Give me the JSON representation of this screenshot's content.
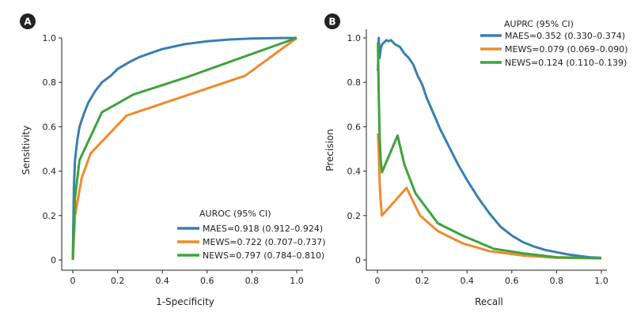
{
  "colors": {
    "maes": "#3a7fb0",
    "mews": "#ef8a2b",
    "news": "#3ea33c",
    "axis": "#222222"
  },
  "chart_data": [
    {
      "panel_label": "A",
      "type": "line",
      "xlabel": "1-Specificity",
      "ylabel": "Sensitivity",
      "xlim": [
        0,
        1
      ],
      "ylim": [
        0,
        1
      ],
      "xticks": [
        "0",
        "0.2",
        "0.4",
        "0.6",
        "0.8",
        "1.0"
      ],
      "yticks": [
        "0",
        "0.2",
        "0.4",
        "0.6",
        "0.8",
        "1.0"
      ],
      "grid": false,
      "legend_title": "AUROC (95% CI)",
      "legend_position": "bottom-right",
      "series": [
        {
          "name": "MAES=0.918 (0.912–0.924)",
          "color": "maes",
          "x": [
            0,
            0.005,
            0.01,
            0.02,
            0.03,
            0.05,
            0.07,
            0.1,
            0.13,
            0.17,
            0.2,
            0.25,
            0.3,
            0.4,
            0.5,
            0.6,
            0.7,
            0.8,
            0.9,
            1.0
          ],
          "y": [
            0,
            0.33,
            0.45,
            0.54,
            0.6,
            0.66,
            0.71,
            0.76,
            0.8,
            0.83,
            0.86,
            0.89,
            0.915,
            0.95,
            0.972,
            0.985,
            0.993,
            0.997,
            0.999,
            1.0
          ]
        },
        {
          "name": "MEWS=0.722 (0.707–0.737)",
          "color": "mews",
          "x": [
            0,
            0.01,
            0.04,
            0.08,
            0.24,
            0.77,
            1.0
          ],
          "y": [
            0,
            0.2,
            0.37,
            0.48,
            0.65,
            0.83,
            1.0
          ]
        },
        {
          "name": "NEWS=0.797 (0.784–0.810)",
          "color": "news",
          "x": [
            0,
            0.01,
            0.03,
            0.13,
            0.27,
            0.5,
            1.0
          ],
          "y": [
            0,
            0.28,
            0.45,
            0.665,
            0.745,
            0.82,
            1.0
          ]
        }
      ]
    },
    {
      "panel_label": "B",
      "type": "line",
      "xlabel": "Recall",
      "ylabel": "Precision",
      "xlim": [
        0,
        1
      ],
      "ylim": [
        0,
        1
      ],
      "xticks": [
        "0",
        "0.2",
        "0.4",
        "0.6",
        "0.8",
        "1.0"
      ],
      "yticks": [
        "0",
        "0.2",
        "0.4",
        "0.6",
        "0.8",
        "1.0"
      ],
      "grid": false,
      "legend_title": "AUPRC (95% CI)",
      "legend_position": "top-right",
      "series": [
        {
          "name": "MAES=0.352 (0.330–0.374)",
          "color": "maes",
          "x": [
            0.002,
            0.006,
            0.01,
            0.015,
            0.02,
            0.03,
            0.04,
            0.05,
            0.06,
            0.08,
            0.1,
            0.12,
            0.14,
            0.16,
            0.18,
            0.2,
            0.22,
            0.25,
            0.28,
            0.3,
            0.33,
            0.36,
            0.4,
            0.45,
            0.5,
            0.55,
            0.6,
            0.65,
            0.7,
            0.75,
            0.8,
            0.85,
            0.9,
            0.95,
            1.0
          ],
          "y": [
            0.85,
            1.0,
            0.91,
            0.95,
            0.97,
            0.98,
            0.99,
            0.985,
            0.99,
            0.97,
            0.96,
            0.93,
            0.91,
            0.88,
            0.83,
            0.79,
            0.73,
            0.66,
            0.59,
            0.55,
            0.49,
            0.43,
            0.36,
            0.28,
            0.21,
            0.15,
            0.11,
            0.08,
            0.06,
            0.045,
            0.035,
            0.025,
            0.018,
            0.012,
            0.01
          ]
        },
        {
          "name": "MEWS=0.079 (0.069–0.090)",
          "color": "mews",
          "x": [
            0.002,
            0.005,
            0.01,
            0.015,
            0.02,
            0.13,
            0.19,
            0.27,
            0.38,
            0.5,
            0.65,
            0.8,
            1.0
          ],
          "y": [
            0.57,
            0.52,
            0.35,
            0.26,
            0.2,
            0.325,
            0.2,
            0.13,
            0.075,
            0.04,
            0.02,
            0.01,
            0.007
          ]
        },
        {
          "name": "NEWS=0.124 (0.110–0.139)",
          "color": "news",
          "x": [
            0.002,
            0.005,
            0.01,
            0.015,
            0.02,
            0.09,
            0.12,
            0.17,
            0.27,
            0.38,
            0.52,
            0.65,
            0.8,
            1.0
          ],
          "y": [
            0.98,
            0.8,
            0.55,
            0.45,
            0.395,
            0.56,
            0.43,
            0.3,
            0.165,
            0.11,
            0.05,
            0.03,
            0.012,
            0.008
          ]
        }
      ]
    }
  ]
}
